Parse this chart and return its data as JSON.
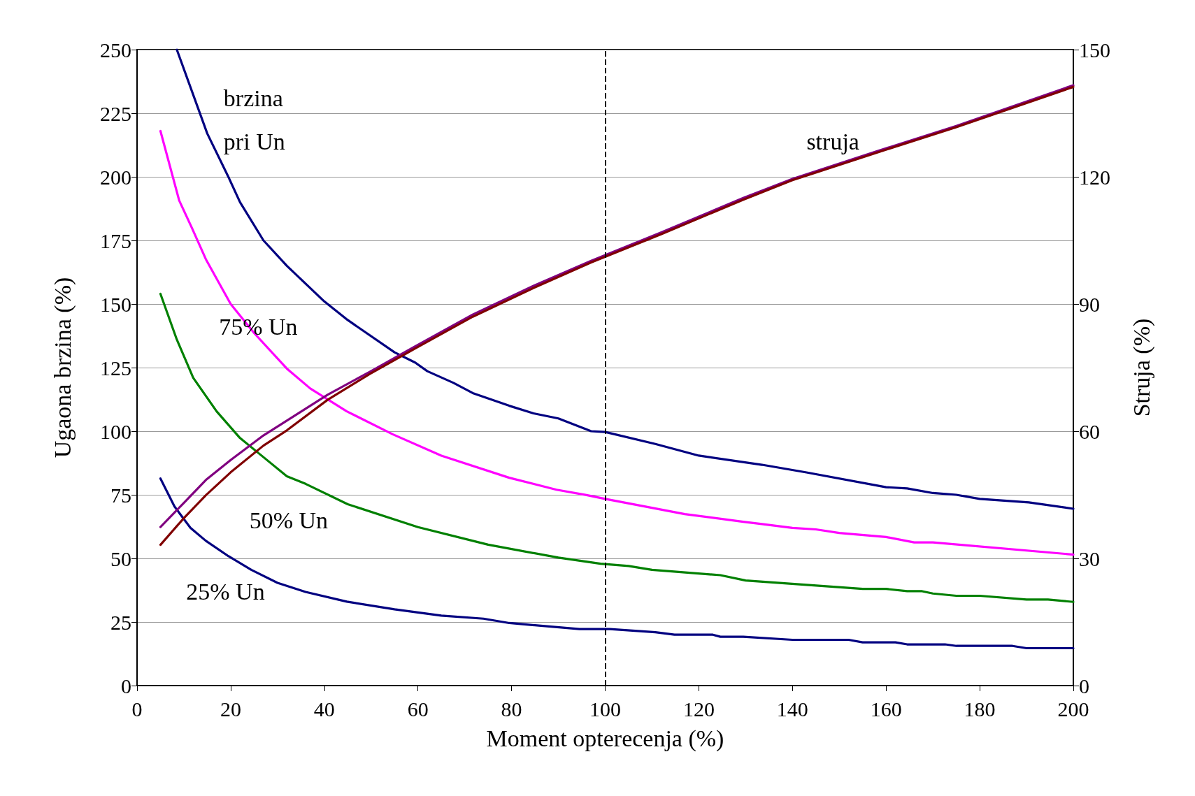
{
  "chart_data": {
    "type": "line",
    "xlabel": "Moment opterecenja (%)",
    "ylabel": "Ugaona brzina (%)",
    "y2label": "Struja (%)",
    "xlim": [
      0,
      200
    ],
    "xticks": [
      0,
      20,
      40,
      60,
      80,
      100,
      120,
      140,
      160,
      180,
      200
    ],
    "ylim": [
      0,
      250
    ],
    "yticks": [
      0,
      25,
      50,
      75,
      100,
      125,
      150,
      175,
      200,
      225,
      250
    ],
    "y2lim": [
      0,
      150
    ],
    "y2ticks": [
      0,
      30,
      60,
      90,
      120,
      150
    ],
    "grid": "y",
    "marker": "none",
    "line_style": "solid",
    "series": [
      {
        "color": "#000080",
        "x": [
          8.5,
          15,
          19.5,
          22,
          27,
          32,
          40,
          45,
          55,
          59.4,
          62,
          67.6,
          71.7,
          79.5,
          84.7,
          90,
          97,
          100,
          110.7,
          120,
          133.5,
          143,
          160,
          164.5,
          170,
          175,
          180,
          190.5,
          200
        ],
        "values": [
          250,
          217,
          200,
          190,
          175,
          165,
          151,
          143.7,
          131,
          127,
          123.6,
          119,
          115,
          110,
          107,
          105,
          100,
          99.7,
          95,
          90.4,
          86.8,
          83.8,
          78,
          77.5,
          75.7,
          75,
          73.4,
          72,
          69.5
        ]
      },
      {
        "color": "#ff00ff",
        "x": [
          5,
          9,
          11.7,
          14.7,
          20,
          25,
          32,
          37,
          44.8,
          54.6,
          65,
          79.5,
          89.6,
          96,
          100,
          117,
          129.5,
          133.5,
          140,
          145,
          150,
          160,
          166,
          170,
          200
        ],
        "values": [
          218,
          190.7,
          180,
          167.6,
          150,
          138.6,
          124.6,
          116.8,
          107.8,
          98.8,
          90.4,
          81.7,
          77,
          74.9,
          73.4,
          67.4,
          64.4,
          63.5,
          62,
          61.4,
          60,
          58.4,
          56.3,
          56.3,
          51.5
        ]
      },
      {
        "color": "#008000",
        "x": [
          5,
          8.5,
          12,
          17,
          22,
          27,
          32,
          36,
          45,
          60,
          75,
          90,
          99,
          105,
          110,
          124.6,
          130,
          155,
          160,
          164.5,
          167.7,
          170,
          175,
          180,
          190,
          194.6,
          200
        ],
        "values": [
          154,
          136,
          121,
          107.8,
          97.3,
          89.8,
          82.3,
          79.3,
          71.3,
          62.3,
          55.4,
          50.3,
          47.9,
          47,
          45.5,
          43.4,
          41.3,
          38,
          38,
          37.1,
          37.1,
          36.2,
          35.3,
          35.3,
          33.8,
          33.8,
          32.9
        ]
      },
      {
        "color": "#000080",
        "x": [
          5,
          8,
          11.4,
          14.7,
          19.5,
          24.4,
          30,
          36,
          44.8,
          55,
          65,
          74,
          79.5,
          94.5,
          101,
          110.7,
          114.8,
          123,
          124.6,
          129.5,
          140,
          152,
          155,
          162,
          164.5,
          172.6,
          175,
          187,
          190,
          200
        ],
        "values": [
          81.4,
          70.4,
          62,
          56.9,
          50.9,
          45.5,
          40.4,
          36.8,
          33,
          30,
          27.5,
          26.3,
          24.6,
          22.2,
          22.2,
          21,
          20,
          20,
          19.2,
          19.2,
          18,
          18,
          17,
          17,
          16.2,
          16.2,
          15.6,
          15.6,
          14.7,
          14.7
        ]
      },
      {
        "color": "#800080",
        "axis": "y2",
        "x": [
          5,
          10,
          14.7,
          20,
          27,
          32,
          40.7,
          49.7,
          59.4,
          71.7,
          84.7,
          97,
          112,
          129.5,
          140,
          158,
          175,
          200
        ],
        "values": [
          37.4,
          43.1,
          48.5,
          53.2,
          59,
          62.5,
          68.6,
          74,
          80,
          87.5,
          94.3,
          100.2,
          106.9,
          115,
          119.5,
          126,
          132,
          141.6
        ]
      },
      {
        "color": "#800000",
        "axis": "y2",
        "x": [
          5,
          10,
          14.7,
          20,
          27,
          32,
          40.7,
          49.7,
          59.4,
          71.7,
          84.7,
          97,
          112,
          129.5,
          140,
          158,
          175,
          200
        ],
        "values": [
          33.2,
          39.5,
          44.9,
          50.3,
          56.6,
          60.2,
          67.4,
          73.5,
          79.5,
          87,
          93.8,
          99.8,
          106.5,
          114.6,
          119.2,
          125.7,
          131.7,
          141.2
        ]
      }
    ],
    "ref_lines": [
      {
        "axis": "x",
        "value": 100,
        "line_style": "dashed",
        "color": "#000000"
      }
    ],
    "annotations": [
      "brzina",
      "pri Un",
      "75% Un",
      "50% Un",
      "25% Un",
      "struja"
    ]
  }
}
